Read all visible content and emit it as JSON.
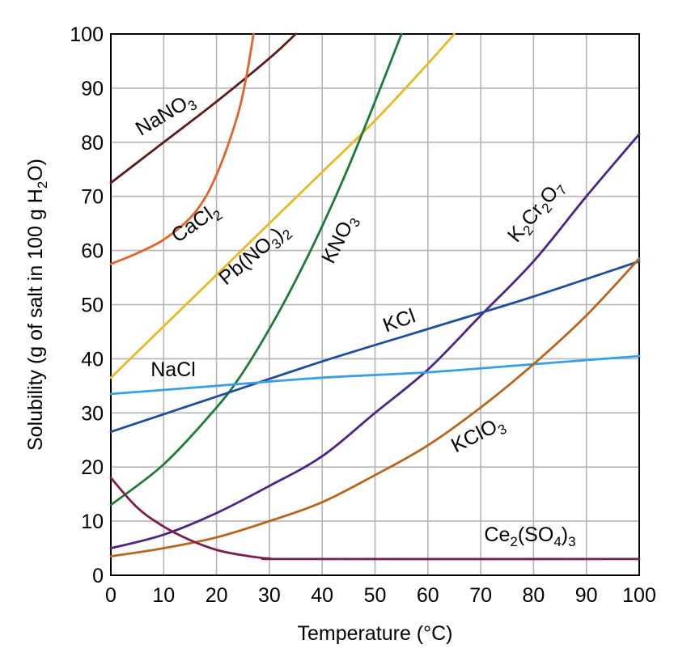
{
  "chart_data": {
    "type": "line",
    "title": "",
    "xlabel": "Temperature (°C)",
    "ylabel_parts": [
      "Solubility (g of salt in 100 g H",
      "2",
      "O)"
    ],
    "xlim": [
      0,
      100
    ],
    "ylim": [
      0,
      100
    ],
    "xticks": [
      0,
      10,
      20,
      30,
      40,
      50,
      60,
      70,
      80,
      90,
      100
    ],
    "yticks": [
      0,
      10,
      20,
      30,
      40,
      50,
      60,
      70,
      80,
      90,
      100
    ],
    "grid": true,
    "legend": "none",
    "series": [
      {
        "name": "NaNO3",
        "label_parts": [
          [
            "NaNO",
            false
          ],
          [
            "3",
            true
          ]
        ],
        "color": "#5c1a1a",
        "x": [
          0,
          10,
          20,
          30,
          35
        ],
        "y": [
          72.5,
          80,
          87.5,
          95.5,
          100
        ]
      },
      {
        "name": "CaCl2",
        "label_parts": [
          [
            "CaCl",
            false
          ],
          [
            "2",
            true
          ]
        ],
        "color": "#e2642a",
        "x": [
          0,
          5,
          10,
          15,
          18,
          20,
          22,
          24,
          25,
          26,
          27
        ],
        "y": [
          57.5,
          59.5,
          62,
          66,
          70,
          74,
          79,
          85,
          89,
          94,
          100
        ]
      },
      {
        "name": "Pb(NO3)2",
        "label_parts": [
          [
            "Pb(NO",
            false
          ],
          [
            "3",
            true
          ],
          [
            ")",
            false
          ],
          [
            "2",
            true
          ]
        ],
        "color": "#e8b923",
        "x": [
          0,
          10,
          20,
          30,
          40,
          50,
          60,
          65
        ],
        "y": [
          36.5,
          46,
          55.5,
          65,
          74.5,
          84,
          94.5,
          100
        ]
      },
      {
        "name": "KNO3",
        "label_parts": [
          [
            "KNO",
            false
          ],
          [
            "3",
            true
          ]
        ],
        "color": "#1f7a3a",
        "x": [
          0,
          10,
          20,
          25,
          30,
          35,
          40,
          45,
          50,
          55
        ],
        "y": [
          13,
          20.5,
          31,
          37.5,
          45.5,
          54.5,
          64.5,
          75.5,
          87.5,
          100
        ]
      },
      {
        "name": "K2Cr2O7",
        "label_parts": [
          [
            "K",
            false
          ],
          [
            "2",
            true
          ],
          [
            "Cr",
            false
          ],
          [
            "2",
            true
          ],
          [
            "O",
            false
          ],
          [
            "7",
            true
          ]
        ],
        "color": "#4b2584",
        "x": [
          0,
          10,
          20,
          30,
          40,
          50,
          60,
          70,
          80,
          90,
          100
        ],
        "y": [
          5,
          7.5,
          11.5,
          16.5,
          22,
          30,
          38,
          48,
          58,
          70,
          81.5
        ]
      },
      {
        "name": "KCl",
        "label_parts": [
          [
            "KCl",
            false
          ]
        ],
        "color": "#1f4e9c",
        "x": [
          0,
          20,
          40,
          60,
          80,
          100
        ],
        "y": [
          26.5,
          33,
          39.5,
          45.5,
          51.5,
          58
        ]
      },
      {
        "name": "NaCl",
        "label_parts": [
          [
            "NaCl",
            false
          ]
        ],
        "color": "#3a9ee6",
        "x": [
          0,
          20,
          40,
          60,
          80,
          100
        ],
        "y": [
          33.5,
          35,
          36.5,
          37.5,
          39,
          40.5
        ]
      },
      {
        "name": "KClO3",
        "label_parts": [
          [
            "KClO",
            false
          ],
          [
            "3",
            true
          ]
        ],
        "color": "#b8661e",
        "x": [
          0,
          10,
          20,
          30,
          40,
          50,
          60,
          70,
          80,
          90,
          100
        ],
        "y": [
          3.5,
          5,
          7,
          10,
          13.5,
          18.5,
          24,
          31,
          39,
          48,
          58.5
        ]
      },
      {
        "name": "Ce2(SO4)3",
        "label_parts": [
          [
            "Ce",
            false
          ],
          [
            "2",
            true
          ],
          [
            "(SO",
            false
          ],
          [
            "4",
            true
          ],
          [
            ")",
            false
          ],
          [
            "3",
            true
          ]
        ],
        "color": "#7b1f4f",
        "x": [
          0,
          5,
          10,
          15,
          20,
          25,
          30,
          35,
          100
        ],
        "y": [
          18,
          12.5,
          9,
          6.5,
          4.7,
          3.7,
          3.1,
          3,
          3
        ]
      }
    ]
  }
}
